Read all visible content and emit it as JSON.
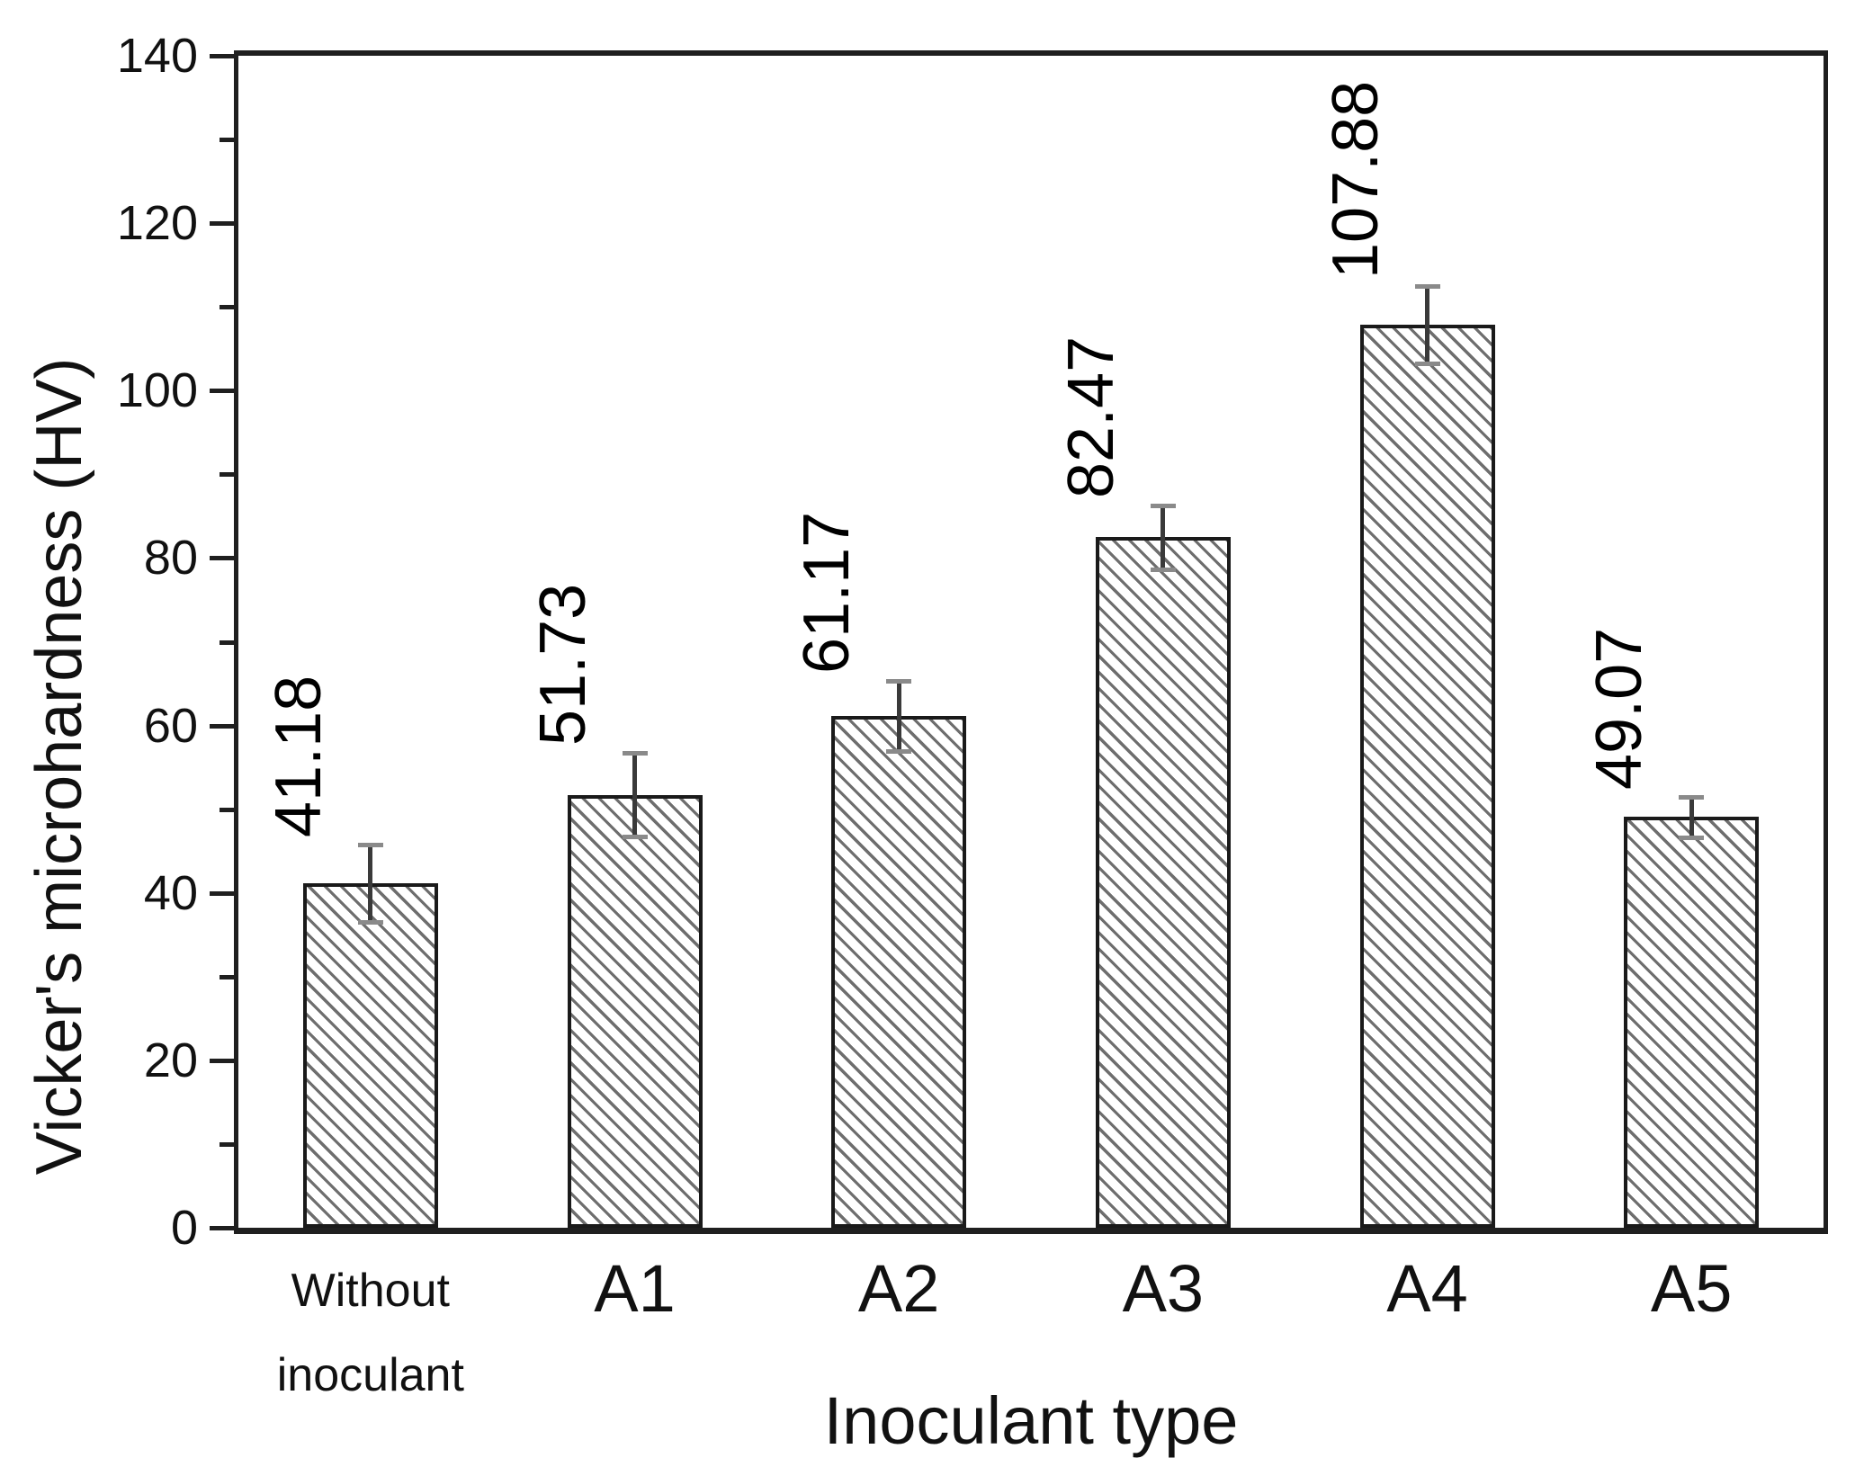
{
  "chart_data": {
    "type": "bar",
    "title": "",
    "xlabel": "Inoculant type",
    "ylabel": "Vicker's microhardness (HV)",
    "ylim": [
      0,
      140
    ],
    "ytick_major_step": 20,
    "ytick_minor_step": 10,
    "ytick_labels": [
      "0",
      "20",
      "40",
      "60",
      "80",
      "100",
      "120",
      "140"
    ],
    "grid": false,
    "legend": false,
    "bar_style": {
      "fill": "#ffffff",
      "hatch": "diagonal-45deg",
      "hatch_color": "#6e6e6e",
      "outline_color": "#1a1a1a"
    },
    "categories": [
      "Without inoculant",
      "A1",
      "A2",
      "A3",
      "A4",
      "A5"
    ],
    "category_lines": [
      [
        "Without",
        "inoculant"
      ],
      [
        "A1"
      ],
      [
        "A2"
      ],
      [
        "A3"
      ],
      [
        "A4"
      ],
      [
        "A5"
      ]
    ],
    "values": [
      41.18,
      51.73,
      61.17,
      82.47,
      107.88,
      49.07
    ],
    "value_labels": [
      "41.18",
      "51.73",
      "61.17",
      "82.47",
      "107.88",
      "49.07"
    ],
    "errors": [
      4.6,
      5.0,
      4.2,
      3.8,
      4.6,
      2.4
    ]
  }
}
